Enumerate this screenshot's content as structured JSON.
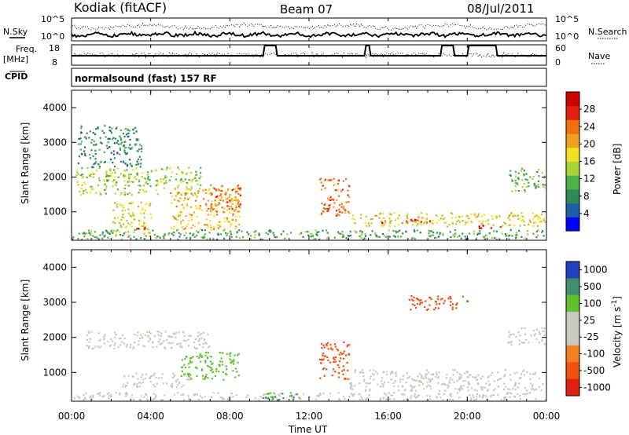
{
  "header": {
    "station": "Kodiak (fitACF)",
    "beam": "Beam 07",
    "date": "08/Jul/2011"
  },
  "noise_panel": {
    "left_label": "N.Sky",
    "right_label": "N.Search",
    "left_ticks": [
      "10^5",
      "10^0"
    ],
    "right_ticks": [
      "10^5",
      "10^0"
    ]
  },
  "freq_panel": {
    "left_label_line1": "Freq.",
    "left_label_line2": "[MHz]",
    "right_label": "Nave",
    "left_ticks": [
      "18",
      "8"
    ],
    "right_ticks": [
      "60",
      "0"
    ]
  },
  "cpid_panel": {
    "label": "CPID",
    "program": "normalsound (fast) 157 RF"
  },
  "colors": {
    "power_scale": [
      "#0000ff",
      "#1e5fa8",
      "#2e8a57",
      "#4fb04a",
      "#a8d23a",
      "#f0e020",
      "#f0a020",
      "#f07010",
      "#e02010",
      "#d00000"
    ],
    "velocity_scale": [
      "#2040c0",
      "#3f8f6f",
      "#60c030",
      "#c8c8c0",
      "#c8c8c0",
      "#f08020",
      "#f05010",
      "#e02010"
    ]
  },
  "chart_data": [
    {
      "type": "heatmap",
      "title": "",
      "xlabel": "",
      "ylabel": "Slant Range [km]",
      "xlim": [
        "00:00",
        "24:00"
      ],
      "ylim": [
        180,
        4500
      ],
      "x_ticks": [
        "00:00",
        "04:00",
        "08:00",
        "12:00",
        "16:00",
        "20:00",
        "00:00"
      ],
      "y_ticks": [
        1000,
        2000,
        3000,
        4000
      ],
      "colorbar": {
        "label": "Power [dB]",
        "ticks": [
          4,
          8,
          12,
          16,
          20,
          24,
          28
        ],
        "range": [
          0,
          32
        ]
      },
      "features": [
        {
          "t_start": 0.0,
          "t_end": 24.0,
          "range_low": 180,
          "range_high": 500,
          "value": 10
        },
        {
          "t_start": 0.2,
          "t_end": 6.5,
          "range_low": 1500,
          "range_high": 2300,
          "value": 14
        },
        {
          "t_start": 0.3,
          "t_end": 3.5,
          "range_low": 2300,
          "range_high": 3500,
          "value": 8
        },
        {
          "t_start": 2.0,
          "t_end": 4.0,
          "range_low": 400,
          "range_high": 1300,
          "value": 18
        },
        {
          "t_start": 3.0,
          "t_end": 4.0,
          "range_low": 480,
          "range_high": 580,
          "value": 28
        },
        {
          "t_start": 5.0,
          "t_end": 8.5,
          "range_low": 500,
          "range_high": 1700,
          "value": 20
        },
        {
          "t_start": 7.0,
          "t_end": 8.5,
          "range_low": 1000,
          "range_high": 1800,
          "value": 24
        },
        {
          "t_start": 12.5,
          "t_end": 14.0,
          "range_low": 900,
          "range_high": 2000,
          "value": 24
        },
        {
          "t_start": 14.0,
          "t_end": 24.0,
          "range_low": 600,
          "range_high": 1000,
          "value": 18
        },
        {
          "t_start": 15.5,
          "t_end": 18.5,
          "range_low": 700,
          "range_high": 800,
          "value": 28
        },
        {
          "t_start": 20.5,
          "t_end": 21.8,
          "range_low": 550,
          "range_high": 650,
          "value": 30
        },
        {
          "t_start": 22.0,
          "t_end": 24.0,
          "range_low": 1600,
          "range_high": 2300,
          "value": 12
        }
      ]
    },
    {
      "type": "heatmap",
      "title": "",
      "xlabel": "Time UT",
      "ylabel": "Slant Range [km]",
      "xlim": [
        "00:00",
        "24:00"
      ],
      "ylim": [
        180,
        4500
      ],
      "x_ticks": [
        "00:00",
        "04:00",
        "08:00",
        "12:00",
        "16:00",
        "20:00",
        "00:00"
      ],
      "y_ticks": [
        1000,
        2000,
        3000,
        4000
      ],
      "colorbar": {
        "label": "Velocity [m s^-1]",
        "ticks": [
          1000,
          500,
          100,
          25,
          -25,
          -100,
          -500,
          -1000
        ]
      },
      "features": [
        {
          "t_start": 0.0,
          "t_end": 24.0,
          "range_low": 180,
          "range_high": 450,
          "value": 0
        },
        {
          "t_start": 0.5,
          "t_end": 7.0,
          "range_low": 1700,
          "range_high": 2200,
          "value": 0
        },
        {
          "t_start": 2.5,
          "t_end": 6.0,
          "range_low": 600,
          "range_high": 1000,
          "value": 0
        },
        {
          "t_start": 5.5,
          "t_end": 8.5,
          "range_low": 800,
          "range_high": 1600,
          "value": 80
        },
        {
          "t_start": 9.5,
          "t_end": 11.5,
          "range_low": 180,
          "range_high": 500,
          "value": 100
        },
        {
          "t_start": 12.5,
          "t_end": 14.0,
          "range_low": 800,
          "range_high": 1900,
          "value": -200
        },
        {
          "t_start": 14.0,
          "t_end": 24.0,
          "range_low": 500,
          "range_high": 1100,
          "value": 0
        },
        {
          "t_start": 17.0,
          "t_end": 20.0,
          "range_low": 2800,
          "range_high": 3200,
          "value": -200
        },
        {
          "t_start": 22.0,
          "t_end": 24.0,
          "range_low": 1800,
          "range_high": 2300,
          "value": 0
        }
      ]
    }
  ]
}
